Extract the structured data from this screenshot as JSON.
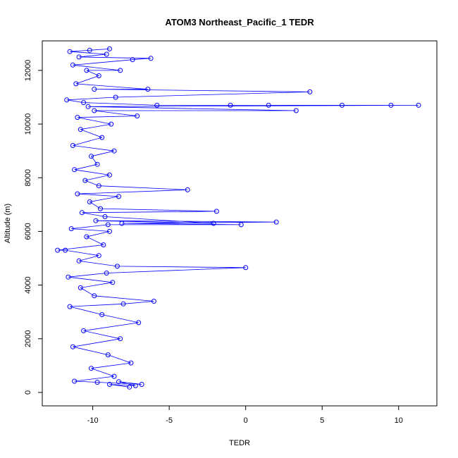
{
  "chart_data": {
    "type": "scatter",
    "title": "ATOM3 Northeast_Pacific_1 TEDR",
    "xlabel": "TEDR",
    "ylabel": "Altitude (m)",
    "xlim": [
      -13.3,
      12.5
    ],
    "ylim": [
      -500,
      13100
    ],
    "x_ticks": [
      -10,
      -5,
      0,
      5,
      10
    ],
    "y_ticks": [
      0,
      2000,
      4000,
      6000,
      8000,
      10000,
      12000
    ],
    "grid": false,
    "legend": "none",
    "marker": "open-circle",
    "connected": true,
    "color": "#0000ff",
    "series": [
      {
        "points": [
          [
            -7.6,
            200
          ],
          [
            -8.9,
            300
          ],
          [
            -7.2,
            250
          ],
          [
            -8.3,
            400
          ],
          [
            -6.8,
            300
          ],
          [
            -9.7,
            380
          ],
          [
            -11.2,
            420
          ],
          [
            -8.6,
            600
          ],
          [
            -10.1,
            900
          ],
          [
            -7.5,
            1100
          ],
          [
            -9.0,
            1400
          ],
          [
            -11.3,
            1700
          ],
          [
            -8.2,
            2000
          ],
          [
            -10.6,
            2300
          ],
          [
            -7.0,
            2600
          ],
          [
            -9.4,
            2900
          ],
          [
            -11.5,
            3200
          ],
          [
            -8.0,
            3300
          ],
          [
            -6.0,
            3400
          ],
          [
            -9.9,
            3600
          ],
          [
            -10.8,
            3900
          ],
          [
            -8.7,
            4100
          ],
          [
            -11.6,
            4300
          ],
          [
            -9.1,
            4450
          ],
          [
            0.0,
            4650
          ],
          [
            -8.4,
            4700
          ],
          [
            -10.9,
            4900
          ],
          [
            -9.6,
            5100
          ],
          [
            -11.8,
            5300
          ],
          [
            -12.3,
            5300
          ],
          [
            -9.3,
            5500
          ],
          [
            -10.4,
            5800
          ],
          [
            -8.9,
            6000
          ],
          [
            -11.4,
            6100
          ],
          [
            -9.0,
            6250
          ],
          [
            -0.3,
            6250
          ],
          [
            -8.1,
            6300
          ],
          [
            2.0,
            6350
          ],
          [
            -9.8,
            6400
          ],
          [
            -2.1,
            6300
          ],
          [
            -9.2,
            6550
          ],
          [
            -10.7,
            6700
          ],
          [
            -1.9,
            6750
          ],
          [
            -9.5,
            6850
          ],
          [
            -10.2,
            7100
          ],
          [
            -8.3,
            7300
          ],
          [
            -11.0,
            7400
          ],
          [
            -3.8,
            7550
          ],
          [
            -9.6,
            7700
          ],
          [
            -10.5,
            7900
          ],
          [
            -8.9,
            8100
          ],
          [
            -11.2,
            8300
          ],
          [
            -9.7,
            8500
          ],
          [
            -10.1,
            8800
          ],
          [
            -8.6,
            9000
          ],
          [
            -11.3,
            9200
          ],
          [
            -9.4,
            9500
          ],
          [
            -10.8,
            9800
          ],
          [
            -8.8,
            10000
          ],
          [
            -11.0,
            10250
          ],
          [
            -7.1,
            10300
          ],
          [
            -9.9,
            10500
          ],
          [
            3.3,
            10500
          ],
          [
            -10.3,
            10650
          ],
          [
            11.3,
            10700
          ],
          [
            9.5,
            10700
          ],
          [
            6.3,
            10700
          ],
          [
            1.5,
            10700
          ],
          [
            -1.0,
            10700
          ],
          [
            -5.8,
            10700
          ],
          [
            -10.6,
            10800
          ],
          [
            -11.7,
            10900
          ],
          [
            -8.5,
            11000
          ],
          [
            4.2,
            11200
          ],
          [
            -9.9,
            11300
          ],
          [
            -6.4,
            11300
          ],
          [
            -11.1,
            11500
          ],
          [
            -9.6,
            11800
          ],
          [
            -10.4,
            12000
          ],
          [
            -8.2,
            12000
          ],
          [
            -11.3,
            12200
          ],
          [
            -7.4,
            12400
          ],
          [
            -6.2,
            12450
          ],
          [
            -10.9,
            12500
          ],
          [
            -9.1,
            12600
          ],
          [
            -11.5,
            12700
          ],
          [
            -8.9,
            12800
          ],
          [
            -10.2,
            12750
          ]
        ]
      }
    ]
  }
}
